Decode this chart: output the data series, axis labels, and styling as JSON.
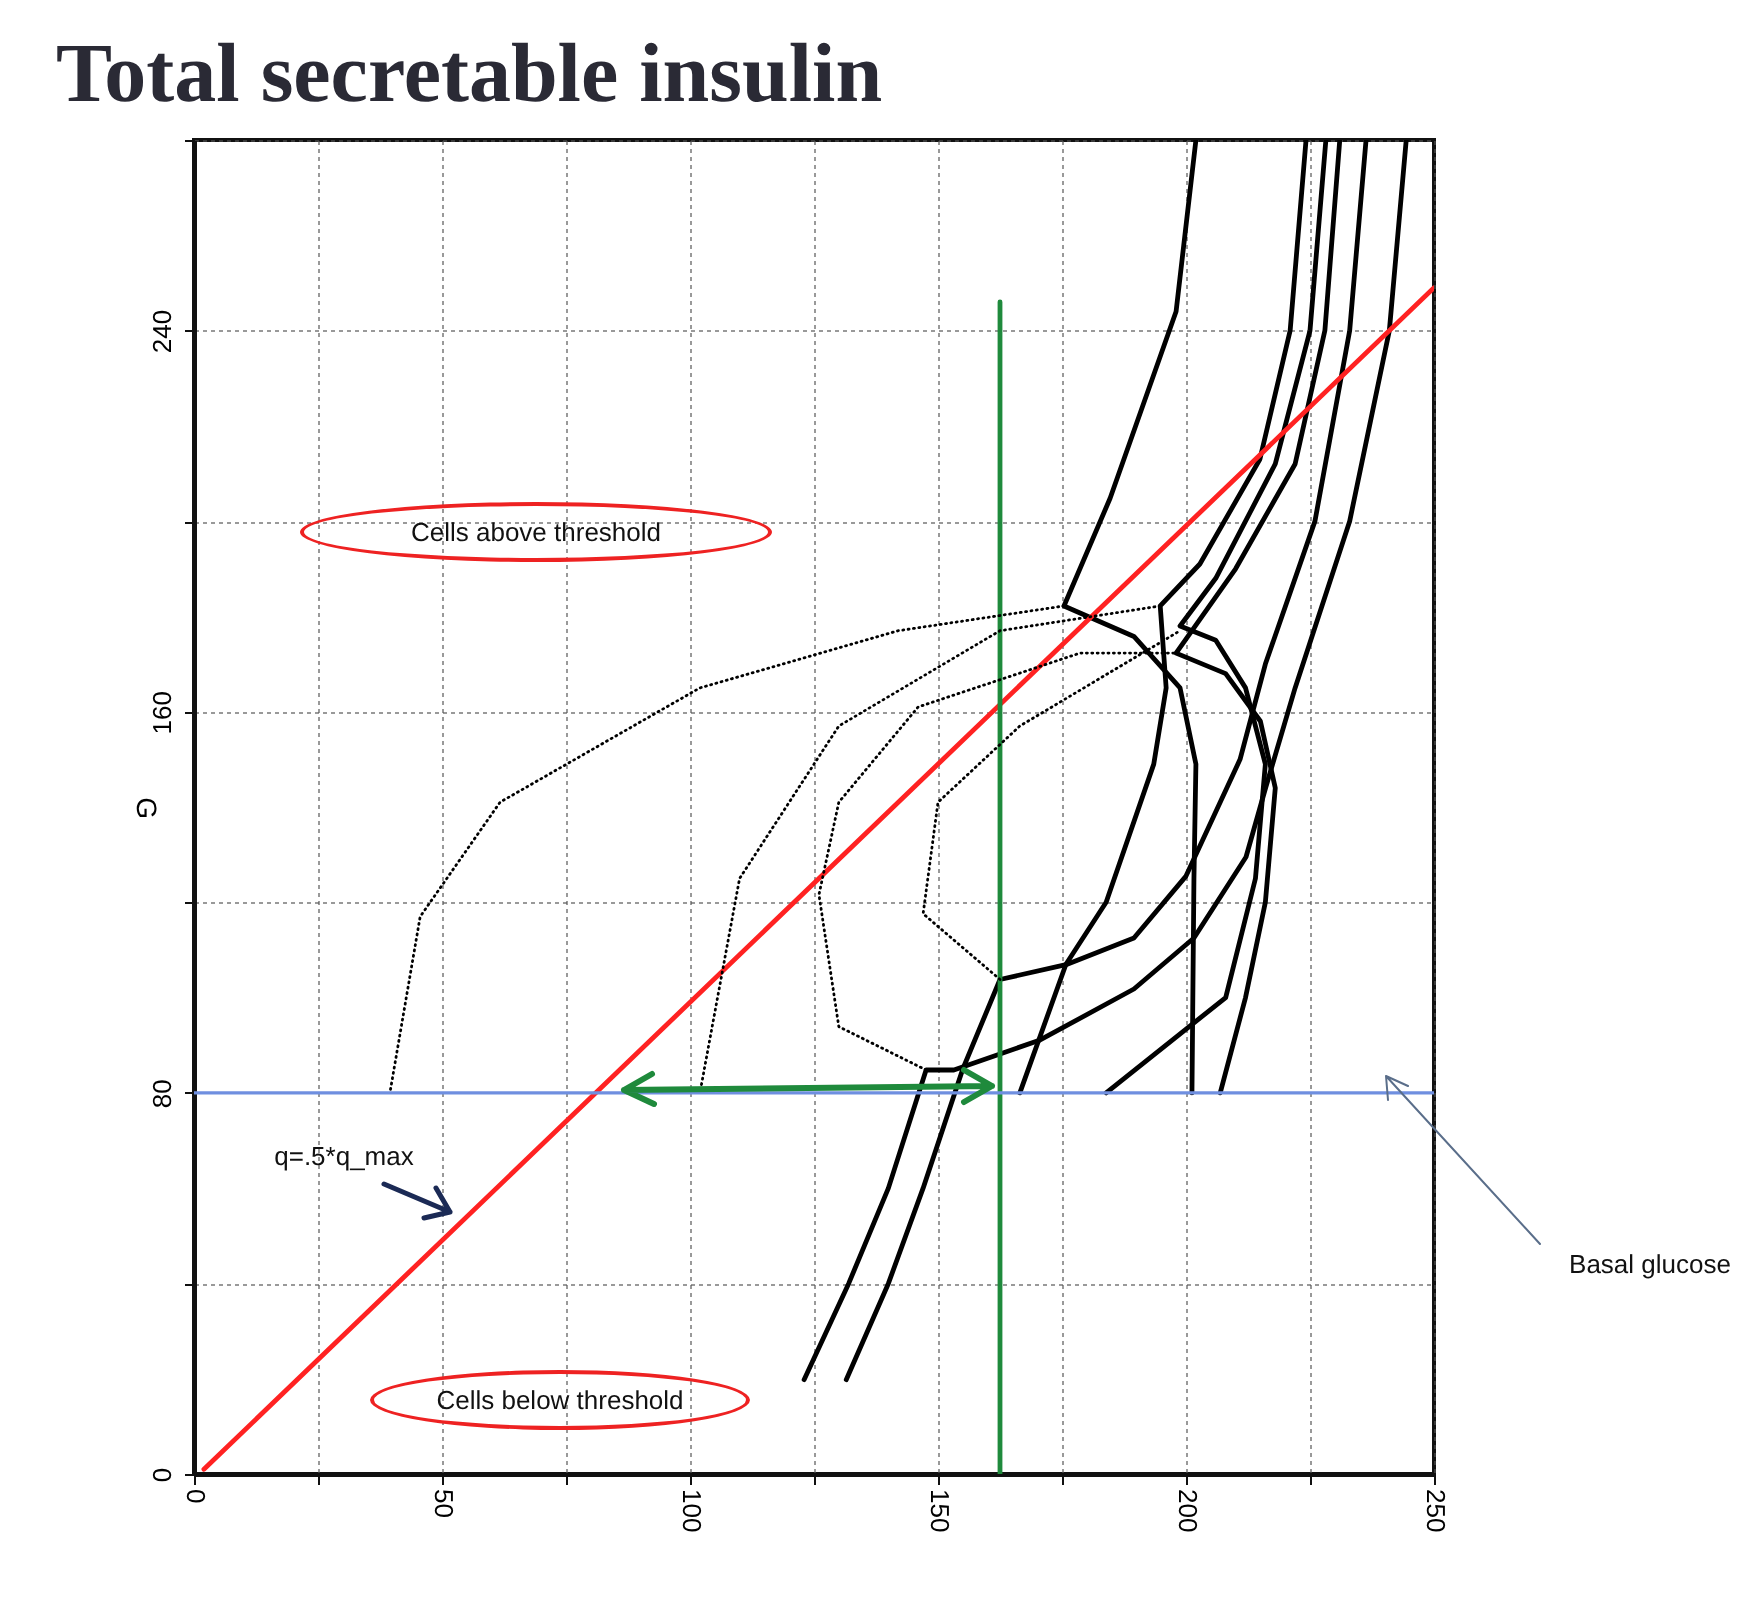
{
  "chart_data": {
    "type": "line",
    "title": "Total secretable insulin",
    "ylabel": "G",
    "xlim": [
      0,
      250
    ],
    "ylim": [
      0,
      280
    ],
    "xticks": [
      0,
      {
        "value": 25,
        "label": null
      },
      50,
      {
        "value": 75,
        "label": null
      },
      100,
      {
        "value": 125,
        "label": null
      },
      150,
      {
        "value": 175,
        "label": null
      },
      200,
      {
        "value": 225,
        "label": null
      },
      250
    ],
    "yticks": [
      0,
      {
        "value": 40,
        "label": null
      },
      80,
      {
        "value": 120,
        "label": null
      },
      160,
      {
        "value": 200,
        "label": null
      },
      240,
      {
        "value": 280,
        "label": null
      }
    ],
    "grid": true,
    "series": [
      {
        "color": "#000000",
        "x": [
          202,
          198,
          184.7,
          175.4,
          189.5,
          198.8,
          202,
          201.6,
          201.2
        ],
        "values": [
          280,
          244,
          204.8,
          182.2,
          175.8,
          165,
          149,
          125,
          80
        ]
      },
      {
        "color": "#000000",
        "x": [
          224.2,
          221,
          214.9,
          202.8,
          194.8,
          196,
          193.5,
          183.9,
          175.8,
          166.5
        ],
        "values": [
          280,
          240,
          213,
          191,
          182.2,
          165,
          149,
          120,
          107,
          80
        ]
      },
      {
        "color": "#000000",
        "x": [
          228.2,
          225,
          218,
          206,
          198.8,
          206,
          212,
          216,
          214,
          208,
          183.9
        ],
        "values": [
          280,
          240,
          212,
          188,
          178,
          175,
          165,
          149,
          125,
          100,
          80
        ]
      },
      {
        "color": "#000000",
        "x": [
          231,
          228,
          222,
          210,
          198,
          208,
          215,
          218,
          216,
          212,
          206.9
        ],
        "values": [
          280,
          240,
          212,
          190,
          172.3,
          168,
          158,
          144,
          120,
          100,
          80
        ]
      },
      {
        "color": "#000000",
        "x": [
          236.3,
          233,
          226,
          216,
          210.9,
          200,
          189.5,
          175.8,
          162.5,
          155,
          147,
          140,
          131.5
        ],
        "values": [
          280,
          240,
          200,
          170,
          150,
          125.5,
          112.5,
          106.9,
          103.8,
          85,
          60,
          40,
          19.8
        ]
      },
      {
        "color": "#000000",
        "x": [
          244.4,
          241,
          233,
          222,
          216.1,
          212.1,
          201.6,
          189.5,
          170.6,
          153.2,
          147.6,
          140,
          132,
          123
        ],
        "values": [
          280,
          240,
          200,
          165,
          144.2,
          129.5,
          112.5,
          101.8,
          91.1,
          84.8,
          84.8,
          60,
          40,
          19.8
        ]
      },
      {
        "color": "#000000",
        "line_style": "dotted",
        "x": [
          175.4,
          142,
          102,
          61.7,
          45.6,
          39.5
        ],
        "values": [
          182.2,
          177,
          165,
          141,
          117,
          80
        ]
      },
      {
        "color": "#000000",
        "line_style": "dotted",
        "x": [
          194.8,
          162.5,
          130,
          110,
          102
        ],
        "values": [
          182.2,
          177,
          157,
          125,
          80
        ]
      },
      {
        "color": "#000000",
        "line_style": "dotted",
        "x": [
          147.6,
          130,
          126,
          130,
          146,
          178.6,
          198
        ],
        "values": [
          84.8,
          93.9,
          121.6,
          141,
          161,
          172.3,
          172.3
        ]
      },
      {
        "color": "#000000",
        "line_style": "dotted",
        "x": [
          162.5,
          147,
          150,
          166.5,
          198.8
        ],
        "values": [
          103.8,
          117.6,
          141,
          157,
          177
        ]
      },
      {
        "color": "#ff2222",
        "x": [
          2,
          250
        ],
        "values": [
          1,
          249
        ]
      },
      {
        "color": "#1f8a3c",
        "x": [
          162.5,
          162.5
        ],
        "values": [
          0,
          246
        ]
      }
    ],
    "ref_lines": [
      {
        "axis": "y",
        "value": 80,
        "color": "#6f8fe0"
      }
    ],
    "annotations": [
      "Cells above threshold",
      "Cells below threshold",
      "q=.5*q_max",
      "Basal glucose"
    ]
  }
}
